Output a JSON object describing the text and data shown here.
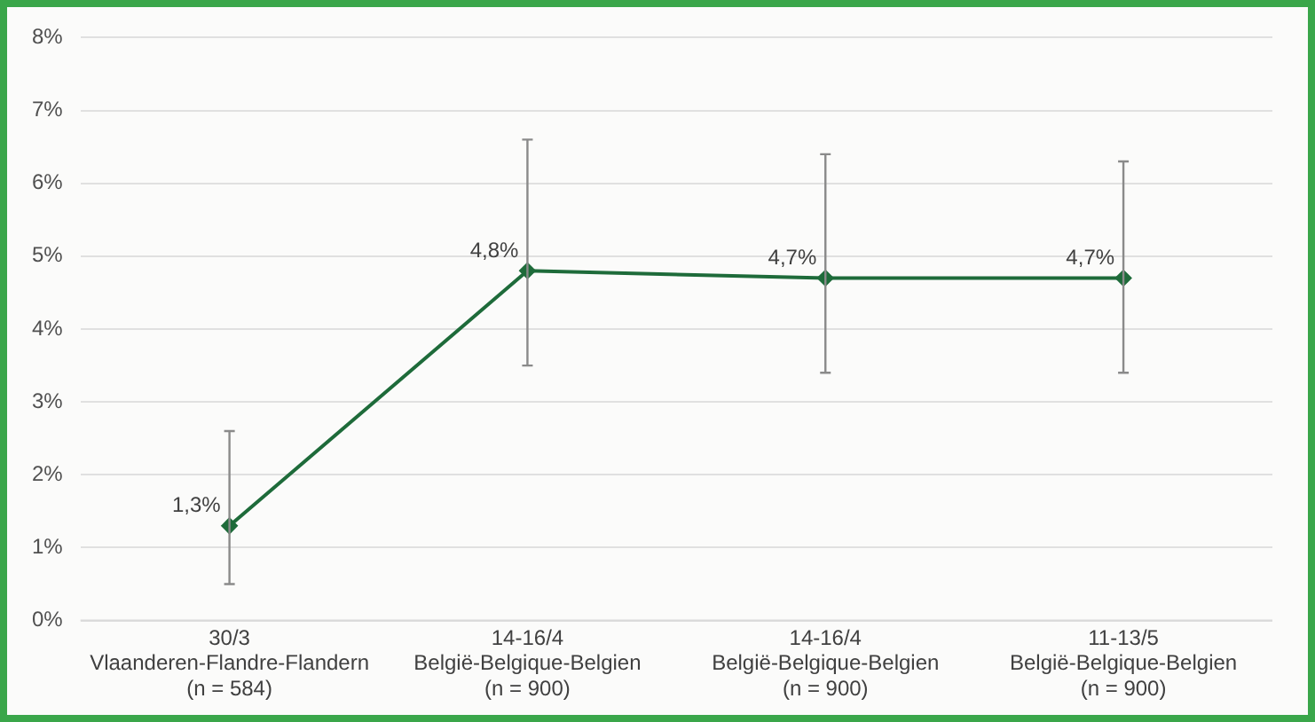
{
  "chart_data": {
    "type": "line",
    "categories": [
      "30/3\nVlaanderen-Flandre-Flandern\n(n = 584)",
      "14-16/4\nBelgië-Belgique-Belgien\n(n = 900)",
      "14-16/4\nBelgië-Belgique-Belgien\n(n = 900)",
      "11-13/5\nBelgië-Belgique-Belgien\n(n = 900)"
    ],
    "series": [
      {
        "color": "#1e6b3a",
        "values": [
          1.3,
          4.8,
          4.7,
          4.7
        ],
        "errors": [
          [
            0.5,
            2.6
          ],
          [
            3.5,
            6.6
          ],
          [
            3.4,
            6.4
          ],
          [
            3.4,
            6.3
          ]
        ],
        "value_labels": [
          "1,3%",
          "4,8%",
          "4,7%",
          "4,7%"
        ]
      }
    ],
    "ylim": [
      0,
      8
    ],
    "yticks": [
      {
        "value": 0,
        "label": "0%"
      },
      {
        "value": 1,
        "label": "1%"
      },
      {
        "value": 2,
        "label": "2%"
      },
      {
        "value": 3,
        "label": "3%"
      },
      {
        "value": 4,
        "label": "4%"
      },
      {
        "value": 5,
        "label": "5%"
      },
      {
        "value": 6,
        "label": "6%"
      },
      {
        "value": 7,
        "label": "7%"
      },
      {
        "value": 8,
        "label": "8%"
      }
    ],
    "grid": "y",
    "legend": false,
    "marker": "diamond",
    "line_style": "solid"
  }
}
